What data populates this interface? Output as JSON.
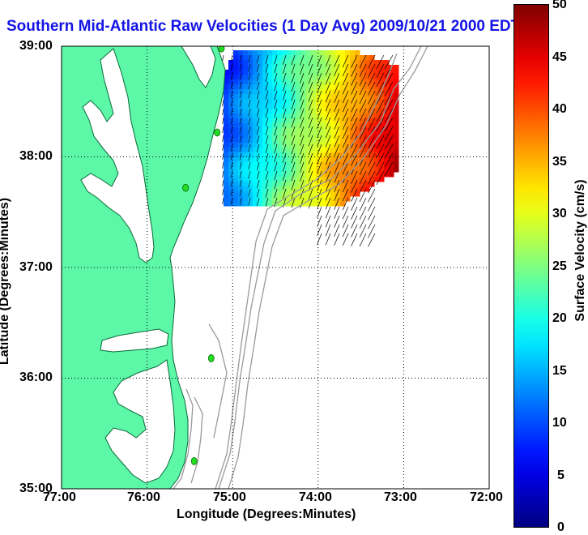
{
  "title": "Southern Mid-Atlantic Raw Velocities (1 Day Avg) 2009/10/21 2000 EDT",
  "axes": {
    "xlabel": "Longitude (Degrees:Minutes)",
    "ylabel": "Latitude (Degrees:Minutes)",
    "x_ticks": [
      "77:00",
      "76:00",
      "75:00",
      "74:00",
      "73:00",
      "72:00"
    ],
    "y_ticks": [
      "39:00",
      "38:00",
      "37:00",
      "36:00",
      "35:00"
    ],
    "xlim": [
      -77,
      -72
    ],
    "ylim": [
      35,
      39
    ],
    "grid": true
  },
  "colorbar": {
    "label": "Surface Velocity (cm/s)",
    "ticks": [
      "50",
      "45",
      "40",
      "35",
      "30",
      "25",
      "20",
      "15",
      "10",
      "5",
      "0"
    ],
    "range": [
      0,
      50
    ],
    "colormap": "jet"
  },
  "colors": {
    "land": "#5cf7a7",
    "coast_outline": "#0a6a3a",
    "bathymetry": "#9a9a9a",
    "vector": "#000000",
    "title": "#1414e6",
    "station": "#22dd22"
  },
  "stations": [
    {
      "lon": -75.13,
      "lat": 38.98
    },
    {
      "lon": -75.18,
      "lat": 38.22
    },
    {
      "lon": -75.55,
      "lat": 37.72
    },
    {
      "lon": -75.25,
      "lat": 36.18
    },
    {
      "lon": -75.45,
      "lat": 35.25
    }
  ]
}
